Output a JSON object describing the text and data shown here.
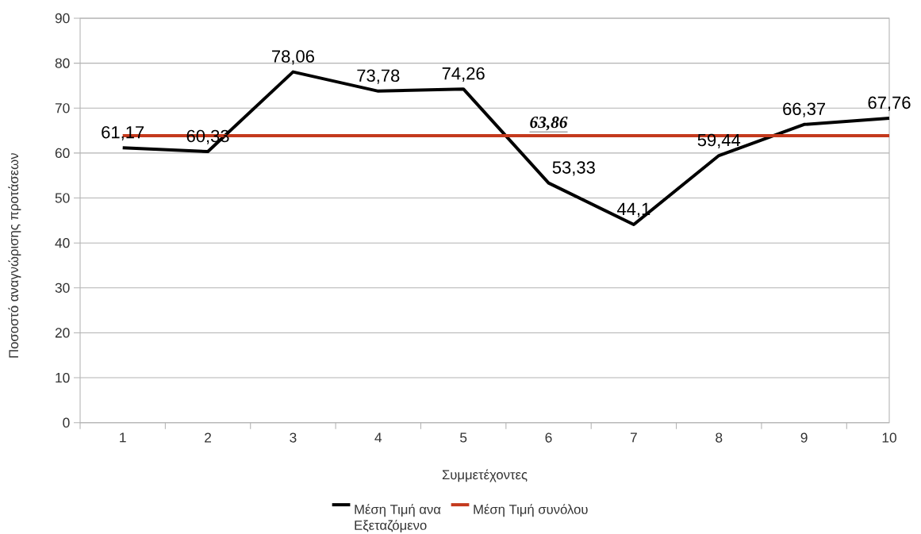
{
  "chart_data": {
    "type": "line",
    "xlabel": "Συμμετέχοντες",
    "ylabel": "Ποσοστό αναγνώρισης προτάσεων",
    "categories": [
      "1",
      "2",
      "3",
      "4",
      "5",
      "6",
      "7",
      "8",
      "9",
      "10"
    ],
    "series": [
      {
        "name": "Μέση Τιμή ανα Εξεταζόμενο",
        "color": "#000000",
        "values": [
          61.17,
          60.33,
          78.06,
          73.78,
          74.26,
          53.33,
          44.1,
          59.44,
          66.37,
          67.76
        ],
        "value_labels": [
          "61,17",
          "60,33",
          "78,06",
          "73,78",
          "74,26",
          "53,33",
          "44,1",
          "59,44",
          "66,37",
          "67,76"
        ]
      },
      {
        "name": "Μέση Τιμή συνόλου",
        "color": "#c4391d",
        "values": [
          63.86,
          63.86,
          63.86,
          63.86,
          63.86,
          63.86,
          63.86,
          63.86,
          63.86,
          63.86
        ],
        "value_labels": [
          null,
          null,
          null,
          null,
          null,
          "63,86",
          null,
          null,
          null,
          null
        ]
      }
    ],
    "ylim": [
      0,
      90
    ],
    "yticks": [
      0,
      10,
      20,
      30,
      40,
      50,
      60,
      70,
      80,
      90
    ],
    "grid": "y",
    "legend": "bottom"
  }
}
